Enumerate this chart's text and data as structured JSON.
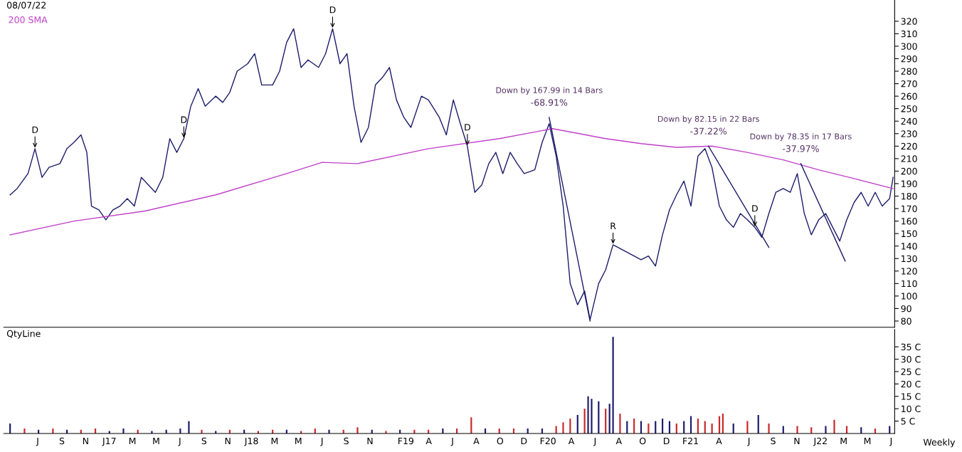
{
  "chart_data": [
    {
      "type": "line",
      "title": "08/07/22",
      "legend": "top left",
      "grid": false,
      "marker": "none",
      "line_style": "solid",
      "tick_labels": "y",
      "xlim": [
        "2016-04-05",
        "2022-07-10"
      ],
      "ylim": [
        75,
        337
      ],
      "yticks": [
        80,
        90,
        100,
        110,
        120,
        130,
        140,
        150,
        160,
        170,
        180,
        190,
        200,
        210,
        220,
        230,
        240,
        250,
        260,
        270,
        280,
        290,
        300,
        310,
        320
      ],
      "series": [
        {
          "color": "#1c1c6b",
          "x": [
            "2016-04-21",
            "2016-05-09",
            "2016-06-06",
            "2016-06-24",
            "2016-07-12",
            "2016-07-30",
            "2016-08-27",
            "2016-09-14",
            "2016-10-02",
            "2016-10-20",
            "2016-11-04",
            "2016-11-16",
            "2016-12-05",
            "2016-12-23",
            "2017-01-10",
            "2017-01-28",
            "2017-02-16",
            "2017-03-06",
            "2017-03-24",
            "2017-04-11",
            "2017-04-29",
            "2017-05-18",
            "2017-06-05",
            "2017-06-23",
            "2017-07-11",
            "2017-07-29",
            "2017-08-17",
            "2017-09-04",
            "2017-10-01",
            "2017-10-19",
            "2017-11-06",
            "2017-11-25",
            "2017-12-22",
            "2018-01-09",
            "2018-01-27",
            "2018-02-24",
            "2018-03-14",
            "2018-04-01",
            "2018-04-19",
            "2018-05-08",
            "2018-05-26",
            "2018-06-22",
            "2018-07-10",
            "2018-07-28",
            "2018-08-16",
            "2018-09-03",
            "2018-09-21",
            "2018-10-09",
            "2018-10-28",
            "2018-11-15",
            "2018-12-03",
            "2018-12-21",
            "2019-01-08",
            "2019-01-27",
            "2019-02-14",
            "2019-03-13",
            "2019-03-31",
            "2019-04-28",
            "2019-05-16",
            "2019-06-03",
            "2019-06-21",
            "2019-07-09",
            "2019-07-28",
            "2019-08-15",
            "2019-09-02",
            "2019-09-20",
            "2019-10-08",
            "2019-10-27",
            "2019-11-14",
            "2019-12-02",
            "2019-12-29",
            "2020-01-17",
            "2020-02-04",
            "2020-02-22",
            "2020-03-11",
            "2020-03-29",
            "2020-04-17",
            "2020-05-05",
            "2020-05-19",
            "2020-06-10",
            "2020-06-28",
            "2020-07-17",
            "2020-08-04",
            "2020-08-22",
            "2020-09-09",
            "2020-09-27",
            "2020-10-16",
            "2020-11-03",
            "2020-11-21",
            "2020-12-09",
            "2020-12-27",
            "2021-01-15",
            "2021-02-02",
            "2021-02-20",
            "2021-03-10",
            "2021-03-28",
            "2021-04-16",
            "2021-05-04",
            "2021-05-22",
            "2021-06-09",
            "2021-06-27",
            "2021-07-16",
            "2021-08-03",
            "2021-08-21",
            "2021-09-08",
            "2021-09-27",
            "2021-10-15",
            "2021-11-02",
            "2021-11-20",
            "2021-12-08",
            "2021-12-27",
            "2022-01-14",
            "2022-02-01",
            "2022-02-19",
            "2022-03-09",
            "2022-03-28",
            "2022-04-15",
            "2022-05-03",
            "2022-05-21",
            "2022-06-08",
            "2022-06-27",
            "2022-07-06"
          ],
          "values": [
            181,
            186,
            198,
            218,
            195,
            203,
            206,
            218,
            223,
            229,
            215,
            172,
            169,
            161,
            169,
            172,
            178,
            172,
            195,
            189,
            183,
            195,
            226,
            215,
            226,
            252,
            266,
            252,
            260,
            255,
            263,
            280,
            286,
            294,
            269,
            269,
            280,
            303,
            314,
            283,
            289,
            283,
            294,
            314,
            286,
            294,
            252,
            223,
            235,
            269,
            275,
            283,
            257,
            243,
            235,
            260,
            257,
            243,
            229,
            257,
            238,
            220,
            183,
            189,
            206,
            215,
            198,
            215,
            206,
            198,
            201,
            223,
            238,
            212,
            172,
            110,
            93,
            104,
            81,
            110,
            121,
            141,
            138,
            135,
            132,
            129,
            132,
            124,
            149,
            169,
            181,
            192,
            172,
            212,
            218,
            203,
            172,
            161,
            155,
            166,
            161,
            155,
            147,
            166,
            183,
            186,
            183,
            198,
            166,
            149,
            161,
            166,
            155,
            144,
            161,
            175,
            183,
            172,
            183,
            172,
            178,
            195
          ]
        },
        {
          "name": "200 SMA",
          "color": "#c040c8",
          "x": [
            "2016-04-21",
            "2016-10-02",
            "2017-04-02",
            "2017-10-01",
            "2018-04-01",
            "2018-07-01",
            "2018-09-30",
            "2019-03-31",
            "2019-09-29",
            "2020-02-13",
            "2020-06-28",
            "2020-09-27",
            "2020-12-27",
            "2021-03-28",
            "2021-06-27",
            "2021-09-27",
            "2021-12-27",
            "2022-03-28",
            "2022-07-06"
          ],
          "values": [
            149,
            160,
            168,
            181,
            198,
            207,
            206,
            218,
            226,
            234,
            226,
            222,
            219,
            220,
            215,
            209,
            201,
            194,
            186
          ]
        },
        {
          "color": "#1c1c6b",
          "x": [
            "2020-02-04",
            "2020-05-19"
          ],
          "values": [
            243,
            80
          ]
        },
        {
          "color": "#1c1c6b",
          "x": [
            "2021-03-19",
            "2021-08-21"
          ],
          "values": [
            220,
            139
          ]
        },
        {
          "color": "#1c1c6b",
          "x": [
            "2021-11-11",
            "2022-03-05"
          ],
          "values": [
            206,
            128
          ]
        }
      ],
      "annotations": [
        {
          "text": "Down by 167.99 in 14 Bars",
          "x": "2020-02-04",
          "y": 243
        },
        {
          "text": "-68.91%",
          "x": "2020-02-04",
          "y": 243
        },
        {
          "text": "Down by 82.15 in 22 Bars",
          "x": "2021-03-19",
          "y": 220
        },
        {
          "text": "-37.22%",
          "x": "2021-03-19",
          "y": 220
        },
        {
          "text": "Down by 78.35 in 17 Bars",
          "x": "2021-11-11",
          "y": 206
        },
        {
          "text": "-37.97%",
          "x": "2021-11-11",
          "y": 206
        },
        {
          "text": "D",
          "x": "2016-06-24",
          "y": 218
        },
        {
          "text": "D",
          "x": "2017-07-11",
          "y": 226
        },
        {
          "text": "D",
          "x": "2018-07-28",
          "y": 314
        },
        {
          "text": "D",
          "x": "2019-07-09",
          "y": 220
        },
        {
          "text": "D",
          "x": "2021-07-16",
          "y": 155
        },
        {
          "text": "R",
          "x": "2020-07-17",
          "y": 141
        }
      ]
    },
    {
      "type": "bar",
      "title": "QtyLine",
      "grid": false,
      "xlim": [
        "2016-04-05",
        "2022-07-10"
      ],
      "ylim": [
        0,
        42
      ],
      "yticks": [
        {
          "value": 5,
          "label": "5 C"
        },
        {
          "value": 10,
          "label": "10 C"
        },
        {
          "value": 15,
          "label": "15 C"
        },
        {
          "value": 20,
          "label": "20 C"
        },
        {
          "value": 25,
          "label": "25 C"
        },
        {
          "value": 30,
          "label": "30 C"
        },
        {
          "value": 35,
          "label": "35 C"
        }
      ],
      "xticks": [
        {
          "value": "2016-07-01",
          "label": "J"
        },
        {
          "value": "2016-09-01",
          "label": "S"
        },
        {
          "value": "2016-11-01",
          "label": "N"
        },
        {
          "value": "2017-01-01",
          "label": "J17"
        },
        {
          "value": "2017-03-01",
          "label": "M"
        },
        {
          "value": "2017-05-01",
          "label": "M"
        },
        {
          "value": "2017-07-01",
          "label": "J"
        },
        {
          "value": "2017-09-01",
          "label": "S"
        },
        {
          "value": "2017-11-01",
          "label": "N"
        },
        {
          "value": "2018-01-01",
          "label": "J18"
        },
        {
          "value": "2018-03-01",
          "label": "M"
        },
        {
          "value": "2018-05-01",
          "label": "M"
        },
        {
          "value": "2018-07-01",
          "label": "J"
        },
        {
          "value": "2018-09-01",
          "label": "S"
        },
        {
          "value": "2018-11-01",
          "label": "N"
        },
        {
          "value": "2019-02-01",
          "label": "F19"
        },
        {
          "value": "2019-04-01",
          "label": "A"
        },
        {
          "value": "2019-06-01",
          "label": "J"
        },
        {
          "value": "2019-08-01",
          "label": "A"
        },
        {
          "value": "2019-10-01",
          "label": "O"
        },
        {
          "value": "2019-12-01",
          "label": "D"
        },
        {
          "value": "2020-02-01",
          "label": "F20"
        },
        {
          "value": "2020-04-01",
          "label": "A"
        },
        {
          "value": "2020-06-01",
          "label": "J"
        },
        {
          "value": "2020-08-01",
          "label": "A"
        },
        {
          "value": "2020-10-01",
          "label": "O"
        },
        {
          "value": "2020-12-01",
          "label": "D"
        },
        {
          "value": "2021-02-01",
          "label": "F21"
        },
        {
          "value": "2021-04-15",
          "label": "A"
        },
        {
          "value": "2021-07-01",
          "label": "J"
        },
        {
          "value": "2021-09-01",
          "label": "S"
        },
        {
          "value": "2021-11-01",
          "label": "N"
        },
        {
          "value": "2022-01-01",
          "label": "J22"
        },
        {
          "value": "2022-03-01",
          "label": "M"
        },
        {
          "value": "2022-05-01",
          "label": "M"
        },
        {
          "value": "2022-07-01",
          "label": "J"
        }
      ],
      "x": [
        "2016-04-21",
        "2016-05-28",
        "2016-07-03",
        "2016-08-09",
        "2016-09-14",
        "2016-10-20",
        "2016-11-26",
        "2017-01-01",
        "2017-02-06",
        "2017-03-15",
        "2017-04-20",
        "2017-05-27",
        "2017-07-02",
        "2017-07-24",
        "2017-08-26",
        "2017-10-01",
        "2017-11-06",
        "2017-12-13",
        "2018-01-18",
        "2018-02-24",
        "2018-04-01",
        "2018-05-08",
        "2018-06-13",
        "2018-07-19",
        "2018-08-25",
        "2018-09-30",
        "2018-11-06",
        "2018-12-12",
        "2019-01-17",
        "2019-02-23",
        "2019-03-31",
        "2019-05-07",
        "2019-06-12",
        "2019-07-19",
        "2019-08-24",
        "2019-09-29",
        "2019-11-05",
        "2019-12-11",
        "2020-01-17",
        "2020-02-22",
        "2020-03-11",
        "2020-03-29",
        "2020-04-17",
        "2020-05-05",
        "2020-05-14",
        "2020-05-23",
        "2020-06-10",
        "2020-06-28",
        "2020-07-08",
        "2020-07-17",
        "2020-08-04",
        "2020-08-22",
        "2020-09-09",
        "2020-09-27",
        "2020-10-16",
        "2020-11-03",
        "2020-11-21",
        "2020-12-09",
        "2020-12-27",
        "2021-01-15",
        "2021-02-02",
        "2021-02-20",
        "2021-03-10",
        "2021-03-28",
        "2021-04-16",
        "2021-04-25",
        "2021-05-22",
        "2021-06-27",
        "2021-07-25",
        "2021-08-21",
        "2021-09-27",
        "2021-11-02",
        "2021-12-08",
        "2022-01-14",
        "2022-02-05",
        "2022-03-09",
        "2022-04-15",
        "2022-05-21",
        "2022-06-27"
      ],
      "values": [
        4,
        2,
        1.5,
        2,
        1.5,
        1.5,
        2,
        1,
        2,
        1.5,
        1,
        1.5,
        2,
        5,
        1.5,
        1,
        1.5,
        1.5,
        1,
        1.5,
        1.5,
        1,
        2,
        1.5,
        1.5,
        2.5,
        1.5,
        1,
        1.5,
        1.5,
        1.5,
        2,
        2,
        6.5,
        2,
        2,
        2,
        2,
        2,
        3,
        4.5,
        6,
        7.5,
        10,
        15,
        14,
        13,
        10,
        12,
        39,
        8,
        5,
        6,
        5,
        4,
        5,
        6,
        5,
        4,
        5,
        7,
        6,
        5,
        4,
        7,
        8,
        4,
        5,
        7.5,
        4,
        3,
        3,
        2.5,
        3,
        5.5,
        3,
        2.5,
        2,
        3
      ],
      "colors": [
        "#1c1c6b",
        "#c8282a",
        "#1c1c6b",
        "#c8282a",
        "#1c1c6b",
        "#c8282a",
        "#c8282a",
        "#1c1c6b",
        "#1c1c6b",
        "#c8282a",
        "#1c1c6b",
        "#1c1c6b",
        "#1c1c6b",
        "#1c1c6b",
        "#c8282a",
        "#1c1c6b",
        "#c8282a",
        "#1c1c6b",
        "#c8282a",
        "#c8282a",
        "#1c1c6b",
        "#c8282a",
        "#c8282a",
        "#1c1c6b",
        "#c8282a",
        "#c8282a",
        "#1c1c6b",
        "#c8282a",
        "#1c1c6b",
        "#c8282a",
        "#c8282a",
        "#1c1c6b",
        "#c8282a",
        "#c8282a",
        "#1c1c6b",
        "#c8282a",
        "#c8282a",
        "#1c1c6b",
        "#1c1c6b",
        "#c8282a",
        "#c8282a",
        "#c8282a",
        "#1c1c6b",
        "#c8282a",
        "#1c1c6b",
        "#1c1c6b",
        "#1c1c6b",
        "#c8282a",
        "#1c1c6b",
        "#1c1c6b",
        "#c8282a",
        "#1c1c6b",
        "#c8282a",
        "#1c1c6b",
        "#c8282a",
        "#1c1c6b",
        "#1c1c6b",
        "#1c1c6b",
        "#c8282a",
        "#1c1c6b",
        "#1c1c6b",
        "#c8282a",
        "#c8282a",
        "#c8282a",
        "#c8282a",
        "#c8282a",
        "#1c1c6b",
        "#c8282a",
        "#1c1c6b",
        "#c8282a",
        "#1c1c6b",
        "#c8282a",
        "#c8282a",
        "#1c1c6b",
        "#c8282a",
        "#c8282a",
        "#1c1c6b",
        "#c8282a",
        "#1c1c6b"
      ],
      "annotations": [
        "Weekly"
      ]
    }
  ]
}
